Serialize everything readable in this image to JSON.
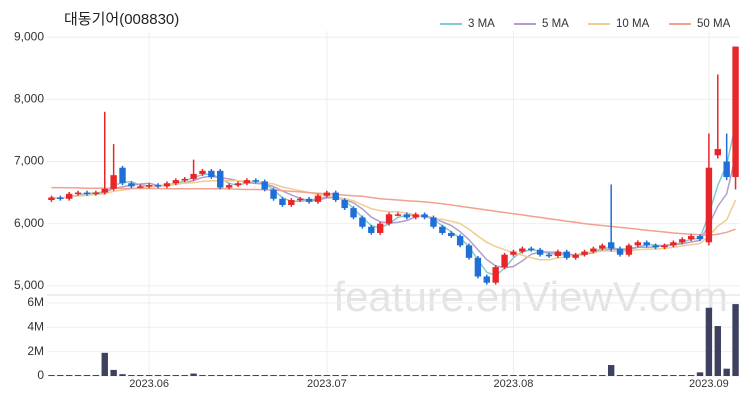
{
  "chart_data": {
    "type": "candlestick",
    "title": "대동기어(008830)",
    "watermark": "feature.enViewV.com",
    "categories": [
      null,
      null,
      null,
      null,
      null,
      null,
      null,
      null,
      null,
      null,
      null,
      "2023.06",
      null,
      null,
      null,
      null,
      null,
      null,
      null,
      null,
      null,
      null,
      null,
      null,
      null,
      null,
      null,
      null,
      null,
      null,
      null,
      "2023.07",
      null,
      null,
      null,
      null,
      null,
      null,
      null,
      null,
      null,
      null,
      null,
      null,
      null,
      null,
      null,
      null,
      null,
      null,
      null,
      null,
      "2023.08",
      null,
      null,
      null,
      null,
      null,
      null,
      null,
      null,
      null,
      null,
      null,
      null,
      null,
      null,
      null,
      null,
      null,
      null,
      null,
      null,
      null,
      "2023.09",
      null,
      null,
      null
    ],
    "open": [
      6380,
      6420,
      6400,
      6480,
      6500,
      6480,
      6500,
      6560,
      6900,
      6650,
      6600,
      6600,
      6620,
      6600,
      6650,
      6700,
      6720,
      6800,
      6850,
      6850,
      6580,
      6620,
      6650,
      6700,
      6680,
      6550,
      6400,
      6300,
      6380,
      6400,
      6350,
      6450,
      6500,
      6380,
      6250,
      6100,
      5950,
      5850,
      6000,
      6150,
      6150,
      6100,
      6150,
      6100,
      5950,
      5850,
      5800,
      5650,
      5450,
      5150,
      5050,
      5300,
      5500,
      5550,
      5600,
      5580,
      5500,
      5480,
      5550,
      5450,
      5500,
      5550,
      5600,
      5700,
      5600,
      5500,
      5650,
      5700,
      5650,
      5620,
      5650,
      5700,
      5750,
      5800,
      5700,
      7100,
      7000,
      6750
    ],
    "high": [
      6450,
      6450,
      6510,
      6530,
      6530,
      6530,
      7800,
      7280,
      6930,
      6680,
      6630,
      6650,
      6650,
      6680,
      6730,
      6750,
      7030,
      6880,
      6880,
      6880,
      6650,
      6680,
      6730,
      6730,
      6710,
      6580,
      6430,
      6410,
      6430,
      6430,
      6480,
      6530,
      6530,
      6410,
      6280,
      6130,
      5980,
      6030,
      6180,
      6180,
      6180,
      6180,
      6180,
      6130,
      5980,
      5880,
      5830,
      5680,
      5480,
      5180,
      5330,
      5530,
      5580,
      5630,
      5630,
      5610,
      5530,
      5580,
      5580,
      5530,
      5580,
      5630,
      5680,
      6630,
      5630,
      5680,
      5730,
      5730,
      5680,
      5680,
      5730,
      5780,
      5830,
      5830,
      7450,
      8400,
      7450,
      8850
    ],
    "low": [
      6350,
      6370,
      6370,
      6450,
      6450,
      6450,
      6470,
      6530,
      6620,
      6570,
      6570,
      6570,
      6570,
      6570,
      6620,
      6670,
      6690,
      6770,
      6720,
      6550,
      6550,
      6590,
      6620,
      6650,
      6520,
      6370,
      6270,
      6270,
      6350,
      6320,
      6320,
      6420,
      6350,
      6220,
      6070,
      5920,
      5820,
      5820,
      5970,
      6120,
      6070,
      6070,
      6070,
      5920,
      5820,
      5770,
      5620,
      5420,
      5120,
      5020,
      5020,
      5270,
      5470,
      5520,
      5550,
      5470,
      5450,
      5450,
      5420,
      5420,
      5470,
      5520,
      5570,
      5550,
      5470,
      5470,
      5620,
      5620,
      5590,
      5590,
      5620,
      5670,
      5720,
      5720,
      5650,
      7050,
      6700,
      6550
    ],
    "close": [
      6420,
      6400,
      6480,
      6500,
      6480,
      6500,
      6560,
      6780,
      6650,
      6600,
      6600,
      6620,
      6600,
      6650,
      6700,
      6720,
      6800,
      6850,
      6750,
      6580,
      6620,
      6650,
      6700,
      6680,
      6550,
      6400,
      6300,
      6380,
      6400,
      6350,
      6450,
      6500,
      6380,
      6250,
      6100,
      5950,
      5850,
      6000,
      6150,
      6150,
      6100,
      6150,
      6100,
      5950,
      5850,
      5800,
      5650,
      5450,
      5150,
      5050,
      5300,
      5500,
      5550,
      5600,
      5580,
      5500,
      5480,
      5550,
      5450,
      5500,
      5550,
      5600,
      5650,
      5600,
      5500,
      5650,
      5700,
      5650,
      5620,
      5650,
      5700,
      5750,
      5800,
      5750,
      6900,
      7200,
      6750,
      8850
    ],
    "up_color": "#e8262a",
    "down_color": "#1f6fd6",
    "series": [
      {
        "name": "3 MA",
        "color": "#7fcdd0",
        "values": [
          6420,
          6410,
          6433,
          6460,
          6487,
          6493,
          6513,
          6613,
          6663,
          6677,
          6617,
          6607,
          6607,
          6623,
          6650,
          6690,
          6740,
          6790,
          6800,
          6727,
          6650,
          6617,
          6657,
          6677,
          6643,
          6543,
          6417,
          6360,
          6360,
          6377,
          6400,
          6433,
          6443,
          6377,
          6243,
          6100,
          5967,
          5933,
          6000,
          6100,
          6133,
          6133,
          6117,
          6067,
          5967,
          5867,
          5767,
          5633,
          5417,
          5217,
          5167,
          5283,
          5450,
          5550,
          5577,
          5560,
          5520,
          5510,
          5493,
          5500,
          5500,
          5550,
          5600,
          5617,
          5583,
          5583,
          5617,
          5667,
          5657,
          5640,
          5657,
          5700,
          5750,
          5767,
          6150,
          6617,
          6950,
          7600
        ]
      },
      {
        "name": "5 MA",
        "color": "#b49dcc",
        "values": [
          6420,
          6410,
          6430,
          6450,
          6456,
          6472,
          6504,
          6564,
          6594,
          6618,
          6638,
          6650,
          6614,
          6614,
          6634,
          6658,
          6694,
          6744,
          6764,
          6740,
          6720,
          6690,
          6660,
          6646,
          6640,
          6596,
          6526,
          6462,
          6406,
          6366,
          6376,
          6416,
          6416,
          6386,
          6336,
          6236,
          6106,
          6030,
          6010,
          6020,
          6050,
          6110,
          6130,
          6090,
          6030,
          5970,
          5870,
          5740,
          5580,
          5420,
          5320,
          5290,
          5310,
          5400,
          5506,
          5546,
          5542,
          5542,
          5512,
          5496,
          5506,
          5530,
          5570,
          5590,
          5580,
          5600,
          5620,
          5620,
          5624,
          5654,
          5664,
          5674,
          5704,
          5730,
          5980,
          6280,
          6480,
          7090
        ]
      },
      {
        "name": "10 MA",
        "color": "#f2cb90",
        "values": [
          6420,
          6410,
          6430,
          6450,
          6460,
          6470,
          6480,
          6520,
          6540,
          6560,
          6580,
          6600,
          6610,
          6620,
          6640,
          6650,
          6660,
          6680,
          6690,
          6690,
          6690,
          6690,
          6680,
          6680,
          6660,
          6640,
          6590,
          6560,
          6530,
          6500,
          6470,
          6450,
          6420,
          6400,
          6370,
          6300,
          6240,
          6210,
          6190,
          6190,
          6170,
          6140,
          6110,
          6080,
          6070,
          6040,
          6000,
          5910,
          5800,
          5700,
          5630,
          5580,
          5530,
          5490,
          5450,
          5420,
          5420,
          5450,
          5460,
          5500,
          5530,
          5540,
          5560,
          5560,
          5550,
          5560,
          5580,
          5590,
          5590,
          5600,
          5620,
          5640,
          5660,
          5680,
          5800,
          5960,
          6060,
          6380
        ]
      },
      {
        "name": "50 MA",
        "color": "#f2a090",
        "values": [
          6580,
          6580,
          6575,
          6575,
          6570,
          6570,
          6570,
          6570,
          6565,
          6565,
          6565,
          6565,
          6565,
          6560,
          6560,
          6560,
          6560,
          6560,
          6560,
          6560,
          6560,
          6555,
          6550,
          6550,
          6545,
          6540,
          6530,
          6520,
          6510,
          6500,
          6490,
          6480,
          6470,
          6460,
          6450,
          6440,
          6420,
          6400,
          6390,
          6380,
          6370,
          6360,
          6350,
          6335,
          6320,
          6300,
          6280,
          6260,
          6240,
          6220,
          6200,
          6180,
          6160,
          6140,
          6120,
          6100,
          6080,
          6060,
          6040,
          6020,
          6000,
          5985,
          5970,
          5955,
          5940,
          5925,
          5910,
          5895,
          5880,
          5865,
          5850,
          5840,
          5830,
          5820,
          5810,
          5830,
          5860,
          5910
        ]
      }
    ],
    "ylim": [
      4900,
      9100
    ],
    "yticks": [
      {
        "value": 5000,
        "label": "5,000"
      },
      {
        "value": 6000,
        "label": "6,000"
      },
      {
        "value": 7000,
        "label": "7,000"
      },
      {
        "value": 8000,
        "label": "8,000"
      },
      {
        "value": 9000,
        "label": "9,000"
      }
    ],
    "legend": "top-right",
    "grid": true,
    "volume": {
      "color": "#3e405f",
      "values": [
        80000,
        80000,
        80000,
        80000,
        80000,
        80000,
        1900000,
        500000,
        150000,
        80000,
        80000,
        80000,
        80000,
        80000,
        80000,
        80000,
        200000,
        80000,
        80000,
        80000,
        80000,
        80000,
        80000,
        80000,
        80000,
        80000,
        80000,
        80000,
        80000,
        80000,
        80000,
        80000,
        80000,
        80000,
        80000,
        80000,
        80000,
        80000,
        80000,
        80000,
        80000,
        80000,
        80000,
        80000,
        80000,
        80000,
        80000,
        80000,
        80000,
        80000,
        80000,
        80000,
        80000,
        80000,
        80000,
        80000,
        80000,
        80000,
        80000,
        80000,
        80000,
        80000,
        80000,
        900000,
        80000,
        80000,
        80000,
        80000,
        80000,
        80000,
        80000,
        80000,
        80000,
        300000,
        5600000,
        4100000,
        600000,
        5900000
      ],
      "ylim": [
        0,
        6400000
      ],
      "yticks": [
        0,
        {
          "value": 2000000,
          "label": "2M"
        },
        {
          "value": 4000000,
          "label": "4M"
        },
        {
          "value": 6000000,
          "label": "6M"
        }
      ]
    }
  }
}
